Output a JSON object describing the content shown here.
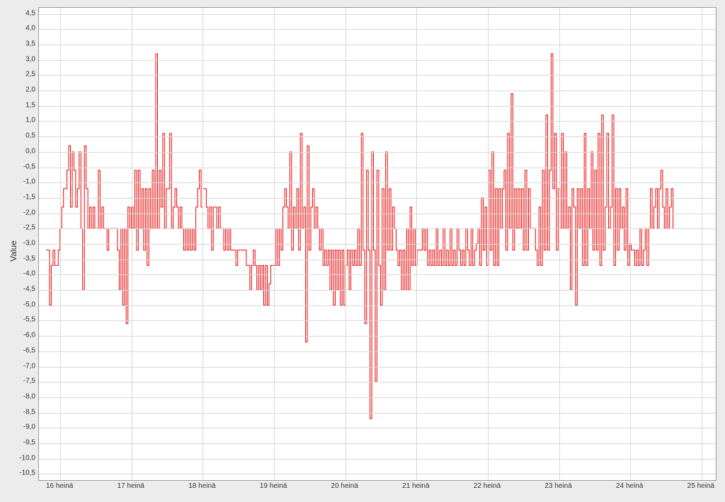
{
  "chart": {
    "type": "line-step",
    "ylabel": "Value",
    "background_color": "#ececec",
    "plot_background_color": "#ffffff",
    "grid_color": "#d8d8d8",
    "border_color": "#9a9a9a",
    "line_color": "#e60000",
    "line_width": 1.0,
    "tick_fontsize": 10,
    "label_fontsize": 12,
    "xlim": [
      15.7,
      25.2
    ],
    "ylim": [
      -10.7,
      4.7
    ],
    "ytick_step": 0.5,
    "ytick_labels": [
      "4,5",
      "4,0",
      "3,5",
      "3,0",
      "2,5",
      "2,0",
      "1,5",
      "1,0",
      "0,5",
      "0,0",
      "-0,5",
      "-1,0",
      "-1,5",
      "-2,0",
      "-2,5",
      "-3,0",
      "-3,5",
      "-4,0",
      "-4,5",
      "-5,0",
      "-5,5",
      "-6,0",
      "-6,5",
      "-7,0",
      "-7,5",
      "-8,0",
      "-8,5",
      "-9,0",
      "-9,5",
      "-10,0",
      "-10,5"
    ],
    "ytick_values": [
      4.5,
      4.0,
      3.5,
      3.0,
      2.5,
      2.0,
      1.5,
      1.0,
      0.5,
      0.0,
      -0.5,
      -1.0,
      -1.5,
      -2.0,
      -2.5,
      -3.0,
      -3.5,
      -4.0,
      -4.5,
      -5.0,
      -5.5,
      -6.0,
      -6.5,
      -7.0,
      -7.5,
      -8.0,
      -8.5,
      -9.0,
      -9.5,
      -10.0,
      -10.5
    ],
    "xtick_values": [
      16,
      17,
      18,
      19,
      20,
      21,
      22,
      23,
      24,
      25
    ],
    "xtick_labels": [
      "16 heinä",
      "17 heinä",
      "18 heinä",
      "19 heinä",
      "20 heinä",
      "21 heinä",
      "22 heinä",
      "23 heinä",
      "24 heinä",
      "25 heinä"
    ],
    "data": [
      -3.2,
      -3.2,
      -5.0,
      -3.7,
      -3.2,
      -3.7,
      -3.7,
      -3.2,
      -2.5,
      -1.8,
      -1.2,
      -1.2,
      -0.6,
      0.2,
      -1.8,
      0.0,
      -0.6,
      -1.8,
      -1.2,
      0.0,
      -2.5,
      -4.5,
      0.2,
      -1.2,
      -2.5,
      -1.8,
      -2.5,
      -1.8,
      -2.5,
      -2.5,
      -0.6,
      -2.5,
      -1.8,
      -2.5,
      -2.5,
      -3.2,
      -2.5,
      -2.5,
      -2.5,
      -2.5,
      -2.5,
      -3.2,
      -4.5,
      -2.5,
      -5.0,
      -2.5,
      -5.6,
      -1.8,
      -2.5,
      -1.8,
      -2.5,
      -0.6,
      -3.2,
      -0.6,
      -2.5,
      -1.2,
      -3.2,
      -1.2,
      -3.7,
      -1.2,
      -2.5,
      -0.6,
      -2.5,
      3.2,
      -2.5,
      -0.6,
      -1.8,
      0.6,
      -2.5,
      -1.2,
      -1.2,
      0.6,
      -2.5,
      -1.8,
      -1.2,
      -1.8,
      -2.5,
      -1.8,
      -2.5,
      -3.2,
      -2.5,
      -3.2,
      -2.5,
      -3.2,
      -2.5,
      -3.2,
      -1.8,
      -1.2,
      -0.6,
      -1.8,
      -1.2,
      -1.2,
      -1.8,
      -2.5,
      -1.8,
      -3.2,
      -1.8,
      -1.8,
      -2.5,
      -1.8,
      -2.5,
      -2.5,
      -3.2,
      -2.5,
      -3.2,
      -2.5,
      -3.2,
      -3.2,
      -3.2,
      -3.7,
      -3.2,
      -3.2,
      -3.2,
      -3.2,
      -3.2,
      -3.7,
      -3.7,
      -4.5,
      -3.7,
      -3.2,
      -3.7,
      -4.5,
      -3.7,
      -4.5,
      -3.7,
      -5.0,
      -3.7,
      -5.0,
      -4.3,
      -3.7,
      -3.7,
      -3.7,
      -2.5,
      -3.7,
      -2.5,
      -3.2,
      -1.8,
      -1.2,
      -1.8,
      -2.5,
      0.0,
      -3.2,
      -1.8,
      -2.5,
      -1.2,
      -3.2,
      0.6,
      -2.5,
      -1.8,
      -6.2,
      0.2,
      -3.2,
      -1.8,
      -1.2,
      -2.5,
      -1.8,
      -2.5,
      -3.2,
      -2.5,
      -3.7,
      -3.2,
      -3.7,
      -3.2,
      -4.5,
      -3.2,
      -5.0,
      -3.2,
      -4.5,
      -3.2,
      -5.0,
      -3.2,
      -5.0,
      -3.7,
      -3.2,
      -4.5,
      -3.2,
      -3.7,
      -3.2,
      -3.7,
      -2.5,
      -3.7,
      0.6,
      -3.2,
      -5.6,
      -0.6,
      -3.2,
      -8.7,
      0.0,
      -3.2,
      -7.5,
      -0.6,
      -3.7,
      -5.0,
      -1.2,
      -4.5,
      0.0,
      -3.2,
      -1.2,
      -3.2,
      -1.8,
      -2.5,
      -3.2,
      -3.7,
      -3.2,
      -4.5,
      -3.2,
      -4.5,
      -2.5,
      -4.5,
      -1.8,
      -3.7,
      -2.5,
      -3.7,
      -3.2,
      -3.2,
      -3.2,
      -2.5,
      -3.2,
      -2.5,
      -3.7,
      -3.2,
      -3.7,
      -3.2,
      -3.7,
      -2.5,
      -3.7,
      -3.2,
      -3.7,
      -2.5,
      -3.7,
      -3.2,
      -3.7,
      -2.5,
      -3.7,
      -3.2,
      -3.7,
      -2.5,
      -3.2,
      -3.7,
      -3.2,
      -3.7,
      -2.5,
      -3.2,
      -3.7,
      -2.5,
      -3.7,
      -3.2,
      -3.0,
      -2.5,
      -3.7,
      -1.5,
      -3.2,
      -1.8,
      -3.7,
      -0.6,
      -3.2,
      0.0,
      -3.7,
      -1.2,
      -3.7,
      -1.2,
      -2.5,
      -1.2,
      -0.6,
      -3.2,
      0.6,
      -2.5,
      1.9,
      -3.2,
      -1.2,
      -2.5,
      -1.2,
      -2.5,
      -1.2,
      -3.2,
      -0.6,
      -3.2,
      -1.2,
      -2.5,
      -2.5,
      -2.5,
      -3.2,
      -3.7,
      -1.8,
      -3.7,
      -0.6,
      -3.2,
      1.2,
      -3.2,
      -0.6,
      3.2,
      -1.2,
      0.6,
      -3.2,
      -1.2,
      -2.5,
      0.6,
      -2.5,
      0.0,
      -2.5,
      -1.8,
      -4.5,
      -1.2,
      -1.8,
      -5.0,
      -1.2,
      -2.5,
      -1.2,
      -3.7,
      0.6,
      -3.7,
      -1.2,
      -2.5,
      0.0,
      -3.2,
      -0.6,
      -3.2,
      0.6,
      -3.7,
      1.2,
      -3.2,
      -1.8,
      0.6,
      -2.5,
      -1.8,
      1.2,
      -3.7,
      -1.2,
      -3.2,
      -1.2,
      -2.5,
      -1.8,
      -3.2,
      -1.2,
      -3.7,
      -3.0,
      -3.2,
      -3.2,
      -3.7,
      -3.2,
      -3.7,
      -2.5,
      -3.7,
      -3.2,
      -2.5,
      -3.7,
      -2.5,
      -1.2,
      -2.5,
      -1.8,
      -1.2,
      -2.5,
      -1.2,
      -0.6,
      -1.8,
      -2.5,
      -1.2,
      -2.5,
      -1.8,
      -1.2,
      -2.5
    ]
  }
}
